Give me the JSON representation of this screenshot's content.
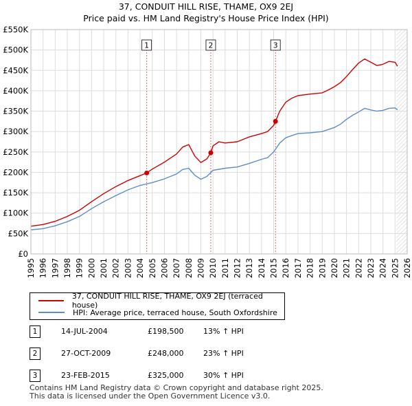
{
  "header": {
    "title": "37, CONDUIT HILL RISE, THAME, OX9 2EJ",
    "subtitle": "Price paid vs. HM Land Registry's House Price Index (HPI)"
  },
  "chart_data": {
    "type": "line",
    "title": "37, CONDUIT HILL RISE, THAME, OX9 2EJ",
    "subtitle": "Price paid vs. HM Land Registry's House Price Index (HPI)",
    "xlim": [
      1995,
      2026
    ],
    "ylim": [
      0,
      550000
    ],
    "x_ticks": [
      1995,
      1996,
      1997,
      1998,
      1999,
      2000,
      2001,
      2002,
      2003,
      2004,
      2005,
      2006,
      2007,
      2008,
      2009,
      2010,
      2011,
      2012,
      2013,
      2014,
      2015,
      2016,
      2017,
      2018,
      2019,
      2020,
      2021,
      2022,
      2023,
      2024,
      2025,
      2026
    ],
    "x_tick_labels": [
      "1995",
      "1996",
      "1997",
      "1998",
      "1999",
      "2000",
      "2001",
      "2002",
      "2003",
      "2004",
      "2005",
      "2006",
      "2007",
      "2008",
      "2009",
      "2010",
      "2011",
      "2012",
      "2013",
      "2014",
      "2015",
      "2016",
      "2017",
      "2018",
      "2019",
      "2020",
      "2021",
      "2022",
      "2023",
      "2024",
      "2025",
      "2026"
    ],
    "y_ticks": [
      0,
      50000,
      100000,
      150000,
      200000,
      250000,
      300000,
      350000,
      400000,
      450000,
      500000,
      550000
    ],
    "y_tick_labels": [
      "£0",
      "£50K",
      "£100K",
      "£150K",
      "£200K",
      "£250K",
      "£300K",
      "£350K",
      "£400K",
      "£450K",
      "£500K",
      "£550K"
    ],
    "grid": true,
    "future_hatch_from": 2025.1,
    "series": [
      {
        "name": "37, CONDUIT HILL RISE, THAME, OX9 2EJ (terraced house)",
        "color": "#cc0000",
        "x": [
          1995.0,
          1996.0,
          1997.0,
          1998.0,
          1999.0,
          2000.0,
          2001.0,
          2002.0,
          2003.0,
          2004.0,
          2004.54,
          2005.0,
          2006.0,
          2007.0,
          2007.5,
          2008.0,
          2008.5,
          2009.0,
          2009.5,
          2009.82,
          2010.0,
          2010.5,
          2011.0,
          2012.0,
          2013.0,
          2014.0,
          2014.5,
          2015.0,
          2015.15,
          2015.5,
          2016.0,
          2016.5,
          2017.0,
          2017.5,
          2018.0,
          2019.0,
          2019.5,
          2020.0,
          2020.5,
          2021.0,
          2021.5,
          2022.0,
          2022.5,
          2023.0,
          2023.5,
          2024.0,
          2024.5,
          2025.0,
          2025.2
        ],
        "y": [
          68000,
          72000,
          80000,
          92000,
          107000,
          128000,
          148000,
          165000,
          180000,
          192000,
          198500,
          208000,
          225000,
          245000,
          262000,
          268000,
          240000,
          224000,
          233000,
          248000,
          265000,
          275000,
          272000,
          275000,
          287000,
          295000,
          300000,
          315000,
          325000,
          350000,
          372000,
          382000,
          388000,
          390000,
          392000,
          395000,
          402000,
          410000,
          420000,
          435000,
          452000,
          468000,
          478000,
          470000,
          462000,
          465000,
          472000,
          470000,
          460000
        ]
      },
      {
        "name": "HPI: Average price, terraced house, South Oxfordshire",
        "color": "#5b8ec9",
        "x": [
          1995.0,
          1996.0,
          1997.0,
          1998.0,
          1999.0,
          2000.0,
          2001.0,
          2002.0,
          2003.0,
          2004.0,
          2005.0,
          2006.0,
          2007.0,
          2007.5,
          2008.0,
          2008.5,
          2009.0,
          2009.5,
          2010.0,
          2011.0,
          2012.0,
          2013.0,
          2014.0,
          2014.5,
          2015.0,
          2015.5,
          2016.0,
          2017.0,
          2018.0,
          2019.0,
          2020.0,
          2020.5,
          2021.0,
          2021.5,
          2022.0,
          2022.5,
          2023.0,
          2023.5,
          2024.0,
          2024.5,
          2025.0,
          2025.2
        ],
        "y": [
          59000,
          62000,
          69000,
          79000,
          92000,
          111000,
          128000,
          143000,
          157000,
          168000,
          175000,
          184000,
          196000,
          207000,
          210000,
          193000,
          183000,
          190000,
          205000,
          210000,
          213000,
          222000,
          232000,
          236000,
          250000,
          272000,
          285000,
          295000,
          297000,
          300000,
          310000,
          318000,
          330000,
          340000,
          348000,
          357000,
          353000,
          350000,
          352000,
          357000,
          358000,
          353000
        ]
      }
    ],
    "transactions": [
      {
        "label": "1",
        "date": "14-JUL-2004",
        "x": 2004.54,
        "price": "£198,500",
        "value": 198500,
        "hpi": "13% ↑ HPI"
      },
      {
        "label": "2",
        "date": "27-OCT-2009",
        "x": 2009.82,
        "price": "£248,000",
        "value": 248000,
        "hpi": "23% ↑ HPI"
      },
      {
        "label": "3",
        "date": "23-FEB-2015",
        "x": 2015.15,
        "price": "£325,000",
        "value": 325000,
        "hpi": "30% ↑ HPI"
      }
    ]
  },
  "legend": {
    "property_label": "37, CONDUIT HILL RISE, THAME, OX9 2EJ (terraced house)",
    "hpi_label": "HPI: Average price, terraced house, South Oxfordshire",
    "property_color": "#cc0000",
    "hpi_color": "#5b8ec9"
  },
  "table": {
    "rows": [
      {
        "num": "1",
        "date": "14-JUL-2004",
        "price": "£198,500",
        "hpi": "13% ↑ HPI"
      },
      {
        "num": "2",
        "date": "27-OCT-2009",
        "price": "£248,000",
        "hpi": "23% ↑ HPI"
      },
      {
        "num": "3",
        "date": "23-FEB-2015",
        "price": "£325,000",
        "hpi": "30% ↑ HPI"
      }
    ]
  },
  "footer": {
    "line1": "Contains HM Land Registry data © Crown copyright and database right 2025.",
    "line2": "This data is licensed under the Open Government Licence v3.0."
  }
}
